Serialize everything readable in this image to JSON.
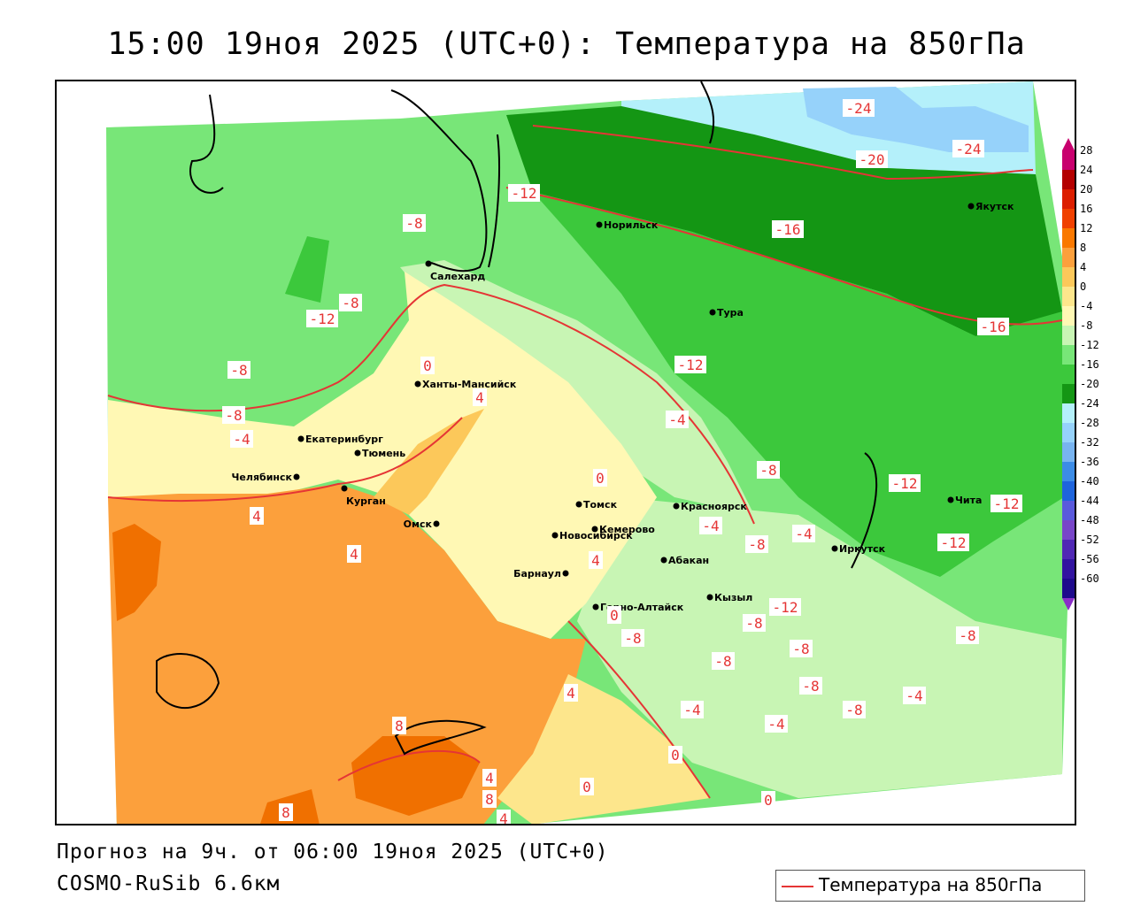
{
  "title": "15:00 19ноя 2025 (UTC+0): Температура на 850гПа",
  "footer": {
    "forecast": "Прогноз на 9ч. от 06:00 19ноя 2025 (UTC+0)",
    "model": "COSMO-RuSib 6.6км"
  },
  "legend": {
    "label": "Температура на 850гПа",
    "line_color": "#e53535"
  },
  "colorbar": {
    "ticks": [
      "28",
      "24",
      "20",
      "16",
      "12",
      "8",
      "4",
      "0",
      "-4",
      "-8",
      "-12",
      "-16",
      "-20",
      "-24",
      "-28",
      "-32",
      "-36",
      "-40",
      "-44",
      "-48",
      "-52",
      "-56",
      "-60"
    ],
    "colors": [
      "#c8006e",
      "#b40000",
      "#dc1e00",
      "#f04000",
      "#fa7800",
      "#fca03c",
      "#fcc85a",
      "#fde68c",
      "#fff8b4",
      "#c8f5b4",
      "#78e678",
      "#3cc83c",
      "#149614",
      "#b4f0fa",
      "#96d2fa",
      "#78b4f0",
      "#3c8ce6",
      "#1e64dc",
      "#5a5adc",
      "#7846c8",
      "#5028b4",
      "#3214a0",
      "#1e0a8c"
    ]
  },
  "cities": [
    {
      "name": "Норильск"
    },
    {
      "name": "Якутск"
    },
    {
      "name": "Салехард"
    },
    {
      "name": "Тура"
    },
    {
      "name": "Ханты-Мансийск"
    },
    {
      "name": "Екатеринбург"
    },
    {
      "name": "Тюмень"
    },
    {
      "name": "Челябинск"
    },
    {
      "name": "Курган"
    },
    {
      "name": "Томск"
    },
    {
      "name": "Красноярск"
    },
    {
      "name": "Омск"
    },
    {
      "name": "Новосибирск"
    },
    {
      "name": "Кемерово"
    },
    {
      "name": "Абакан"
    },
    {
      "name": "Барнаул"
    },
    {
      "name": "Горно-Алтайск"
    },
    {
      "name": "Кызыл"
    },
    {
      "name": "Иркутск"
    },
    {
      "name": "Чита"
    }
  ],
  "isotherm_labels": [
    "-24",
    "-20",
    "-24",
    "-12",
    "-16",
    "-8",
    "-8",
    "-12",
    "-16",
    "-8",
    "-12",
    "0",
    "4",
    "-4",
    "-8",
    "-4",
    "-12",
    "-12",
    "-12",
    "-8",
    "-4",
    "-8",
    "-4",
    "0",
    "4",
    "4",
    "4",
    "0",
    "-8",
    "-12",
    "-8",
    "-8",
    "-8",
    "-8",
    "-4",
    "-4",
    "-8",
    "-4",
    "4",
    "0",
    "8",
    "4",
    "8",
    "4",
    "0",
    "0",
    "8",
    "-8"
  ]
}
